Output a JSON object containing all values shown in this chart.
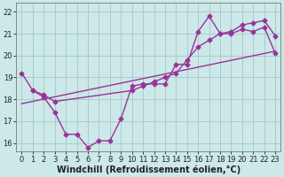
{
  "background_color": "#cce8e8",
  "grid_color": "#aacccc",
  "line_color": "#993399",
  "marker": "D",
  "markersize": 2.5,
  "linewidth": 1.0,
  "xlabel": "Windchill (Refroidissement éolien,°C)",
  "xlabel_fontsize": 7.0,
  "tick_fontsize": 6.0,
  "xlim": [
    -0.5,
    23.5
  ],
  "ylim": [
    15.6,
    22.4
  ],
  "yticks": [
    16,
    17,
    18,
    19,
    20,
    21,
    22
  ],
  "xticks": [
    0,
    1,
    2,
    3,
    4,
    5,
    6,
    7,
    8,
    9,
    10,
    11,
    12,
    13,
    14,
    15,
    16,
    17,
    18,
    19,
    20,
    21,
    22,
    23
  ],
  "series1_x": [
    0,
    1,
    2,
    3,
    4,
    5,
    6,
    7,
    8,
    9,
    10,
    11,
    12,
    13,
    14,
    15,
    16,
    17,
    18,
    19,
    20,
    21,
    22,
    23
  ],
  "series1_y": [
    19.2,
    18.4,
    18.1,
    17.4,
    16.4,
    16.4,
    15.8,
    16.1,
    16.1,
    17.1,
    18.6,
    18.7,
    18.7,
    18.7,
    19.6,
    19.6,
    21.1,
    21.8,
    21.0,
    21.1,
    21.4,
    21.5,
    21.6,
    20.9
  ],
  "series2_x": [
    1,
    2,
    3,
    10,
    11,
    12,
    13,
    14,
    15,
    16,
    17,
    18,
    19,
    20,
    21,
    22,
    23
  ],
  "series2_y": [
    18.4,
    18.2,
    17.9,
    18.4,
    18.6,
    18.8,
    19.0,
    19.2,
    19.8,
    20.4,
    20.7,
    21.0,
    21.0,
    21.2,
    21.1,
    21.3,
    20.1
  ],
  "series3_x": [
    0,
    23
  ],
  "series3_y": [
    17.8,
    20.2
  ]
}
